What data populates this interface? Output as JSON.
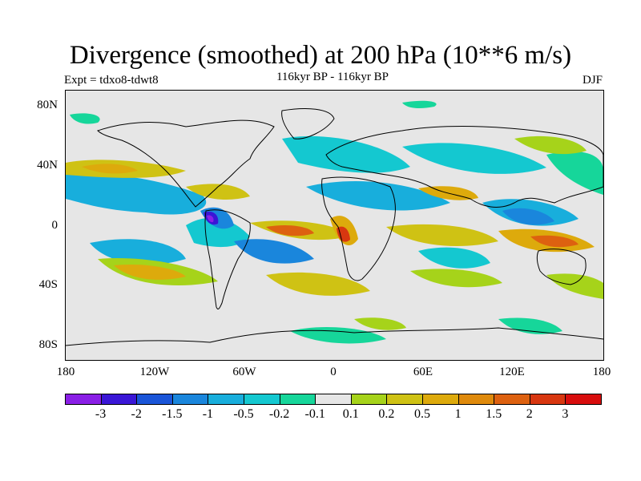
{
  "title": "Divergence (smoothed) at 200 hPa (10**6 m/s)",
  "subtitle": "116kyr BP - 116kyr BP",
  "experiment": "Expt = tdxo8-tdwt8",
  "season": "DJF",
  "axes": {
    "y_ticks": [
      "80N",
      "40N",
      "0",
      "40S",
      "80S"
    ],
    "x_ticks": [
      "180",
      "120W",
      "60W",
      "0",
      "60E",
      "120E",
      "180"
    ]
  },
  "legend": {
    "colors": [
      "#8a1fe6",
      "#3a16d6",
      "#1a55d8",
      "#1a86dc",
      "#18aedc",
      "#14c8d0",
      "#16d69a",
      "#e6e6e6",
      "#a6d31a",
      "#cfc214",
      "#ddaa0c",
      "#df8a0c",
      "#dd6110",
      "#d83710",
      "#d80d0d"
    ],
    "labels": [
      "-3",
      "-2",
      "-1.5",
      "-1",
      "-0.5",
      "-0.2",
      "-0.1",
      "0.1",
      "0.2",
      "0.5",
      "1",
      "1.5",
      "2",
      "3"
    ]
  },
  "chart_data": {
    "type": "heatmap",
    "title": "Divergence (smoothed) at 200 hPa (10**6 m/s)",
    "subtitle": "116kyr BP - 116kyr BP",
    "xlim": [
      -180,
      180
    ],
    "ylim": [
      -90,
      90
    ],
    "contour_levels": [
      -3,
      -2,
      -1.5,
      -1,
      -0.5,
      -0.2,
      -0.1,
      0.1,
      0.2,
      0.5,
      1,
      1.5,
      2,
      3
    ],
    "grid": false
  }
}
